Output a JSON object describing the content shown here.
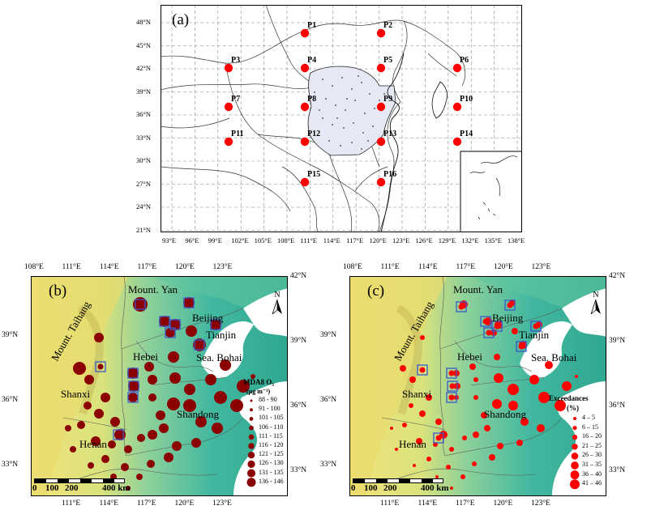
{
  "panel_a": {
    "tag": "(a)",
    "points": [
      {
        "label": "P1"
      },
      {
        "label": "P2"
      },
      {
        "label": "P3"
      },
      {
        "label": "P4"
      },
      {
        "label": "P5"
      },
      {
        "label": "P6"
      },
      {
        "label": "P7"
      },
      {
        "label": "P8"
      },
      {
        "label": "P9"
      },
      {
        "label": "P10"
      },
      {
        "label": "P11"
      },
      {
        "label": "P12"
      },
      {
        "label": "P13"
      },
      {
        "label": "P14"
      },
      {
        "label": "P15"
      },
      {
        "label": "P16"
      }
    ],
    "lat_labels": [
      "48°N",
      "45°N",
      "42°N",
      "39°N",
      "36°N",
      "33°N",
      "30°N",
      "27°N",
      "24°N",
      "21°N"
    ],
    "lon_labels": [
      "93°E",
      "96°E",
      "99°E",
      "102°E",
      "105°E",
      "108°E",
      "111°E",
      "114°E",
      "117°E",
      "120°E",
      "123°E",
      "126°E",
      "129°E",
      "132°E",
      "135°E",
      "138°E"
    ],
    "point_color": "#ff0000"
  },
  "panel_b": {
    "tag": "(b)",
    "top_lon_labels": [
      "108°E",
      "111°E",
      "114°E",
      "117°E",
      "120°E",
      "123°E"
    ],
    "bottom_lon_labels": [
      "111°E",
      "114°E",
      "117°E",
      "120°E",
      "123°E"
    ],
    "left_lat_labels": [
      "39°N",
      "36°N",
      "33°N"
    ],
    "right_lat_labels": [
      "42°N",
      "39°N",
      "36°N",
      "33°N"
    ],
    "place_names": {
      "mount_yan": "Mount. Yan",
      "beijing": "Beijing",
      "tianjin": "Tianjin",
      "hebei": "Hebei",
      "sea_bohai": "Sea. Bohai",
      "mount_taihang": "Mount. Taihang",
      "shanxi": "Shanxi",
      "shandong": "Shandong",
      "henan": "Henan"
    },
    "scale": {
      "labels": [
        "0",
        "100",
        "200",
        "400 km"
      ]
    },
    "north": "N",
    "legend_title": "MDA8 O₃",
    "legend_unit": "(μg m⁻³)",
    "legend_items": [
      "88 - 90",
      "91 - 100",
      "101 - 105",
      "106 - 110",
      "111 - 115",
      "116 - 120",
      "121 - 125",
      "126 - 130",
      "131 - 135",
      "136 - 146"
    ],
    "dot_color": "#8b0000"
  },
  "panel_c": {
    "tag": "(c)",
    "top_lon_labels": [
      "108°E",
      "111°E",
      "114°E",
      "117°E",
      "120°E",
      "123°E"
    ],
    "bottom_lon_labels": [
      "111°E",
      "114°E",
      "117°E",
      "120°E",
      "123°E"
    ],
    "left_lat_labels": [
      "39°N",
      "36°N",
      "33°N"
    ],
    "right_lat_labels": [
      "42°N",
      "39°N",
      "36°N",
      "33°N"
    ],
    "place_names": {
      "mount_yan": "Mount. Yan",
      "beijing": "Beijing",
      "tianjin": "Tianjin",
      "hebei": "Hebei",
      "sea_bohai": "Sea. Bohai",
      "mount_taihang": "Mount. Taihang",
      "shanxi": "Shanxi",
      "shandong": "Shandong",
      "henan": "Henan"
    },
    "scale": {
      "labels": [
        "0",
        "100",
        "200",
        "400 km"
      ]
    },
    "north": "N",
    "legend_title": "Exceedances",
    "legend_unit": "(%)",
    "legend_items": [
      "4 – 5",
      "6 – 15",
      "16 – 20",
      "21 – 25",
      "26 – 30",
      "31 – 35",
      "36 – 40",
      "41 – 46"
    ],
    "dot_color": "#ff0000"
  }
}
